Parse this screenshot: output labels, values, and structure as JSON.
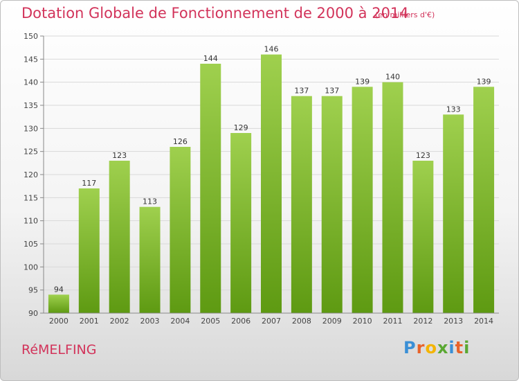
{
  "header": {
    "title": "Dotation Globale de Fonctionnement de 2000 à 2014",
    "unit": "(en milliers d'€)"
  },
  "footer": {
    "commune": "RéMELFING",
    "logo_text": "Proxiti"
  },
  "colors": {
    "title": "#d2335a",
    "bar_top": "#9fd04e",
    "bar_bottom": "#5e9a12",
    "grid": "#d9d9d9",
    "logo_letters": [
      "#3a8fd6",
      "#e8632a",
      "#f4b400",
      "#5aa832",
      "#3a8fd6",
      "#e8632a",
      "#5aa832"
    ]
  },
  "chart_data": {
    "type": "bar",
    "categories": [
      "2000",
      "2001",
      "2002",
      "2003",
      "2004",
      "2005",
      "2006",
      "2007",
      "2008",
      "2009",
      "2010",
      "2011",
      "2012",
      "2013",
      "2014"
    ],
    "values": [
      94,
      117,
      123,
      113,
      126,
      144,
      129,
      146,
      137,
      137,
      139,
      140,
      123,
      133,
      139
    ],
    "title": "Dotation Globale de Fonctionnement de 2000 à 2014",
    "subtitle": "(en milliers d'€)",
    "xlabel": "",
    "ylabel": "",
    "ylim": [
      90,
      150
    ],
    "yticks": [
      90,
      95,
      100,
      105,
      110,
      115,
      120,
      125,
      130,
      135,
      140,
      145,
      150
    ],
    "grid": true,
    "data_labels": true
  }
}
